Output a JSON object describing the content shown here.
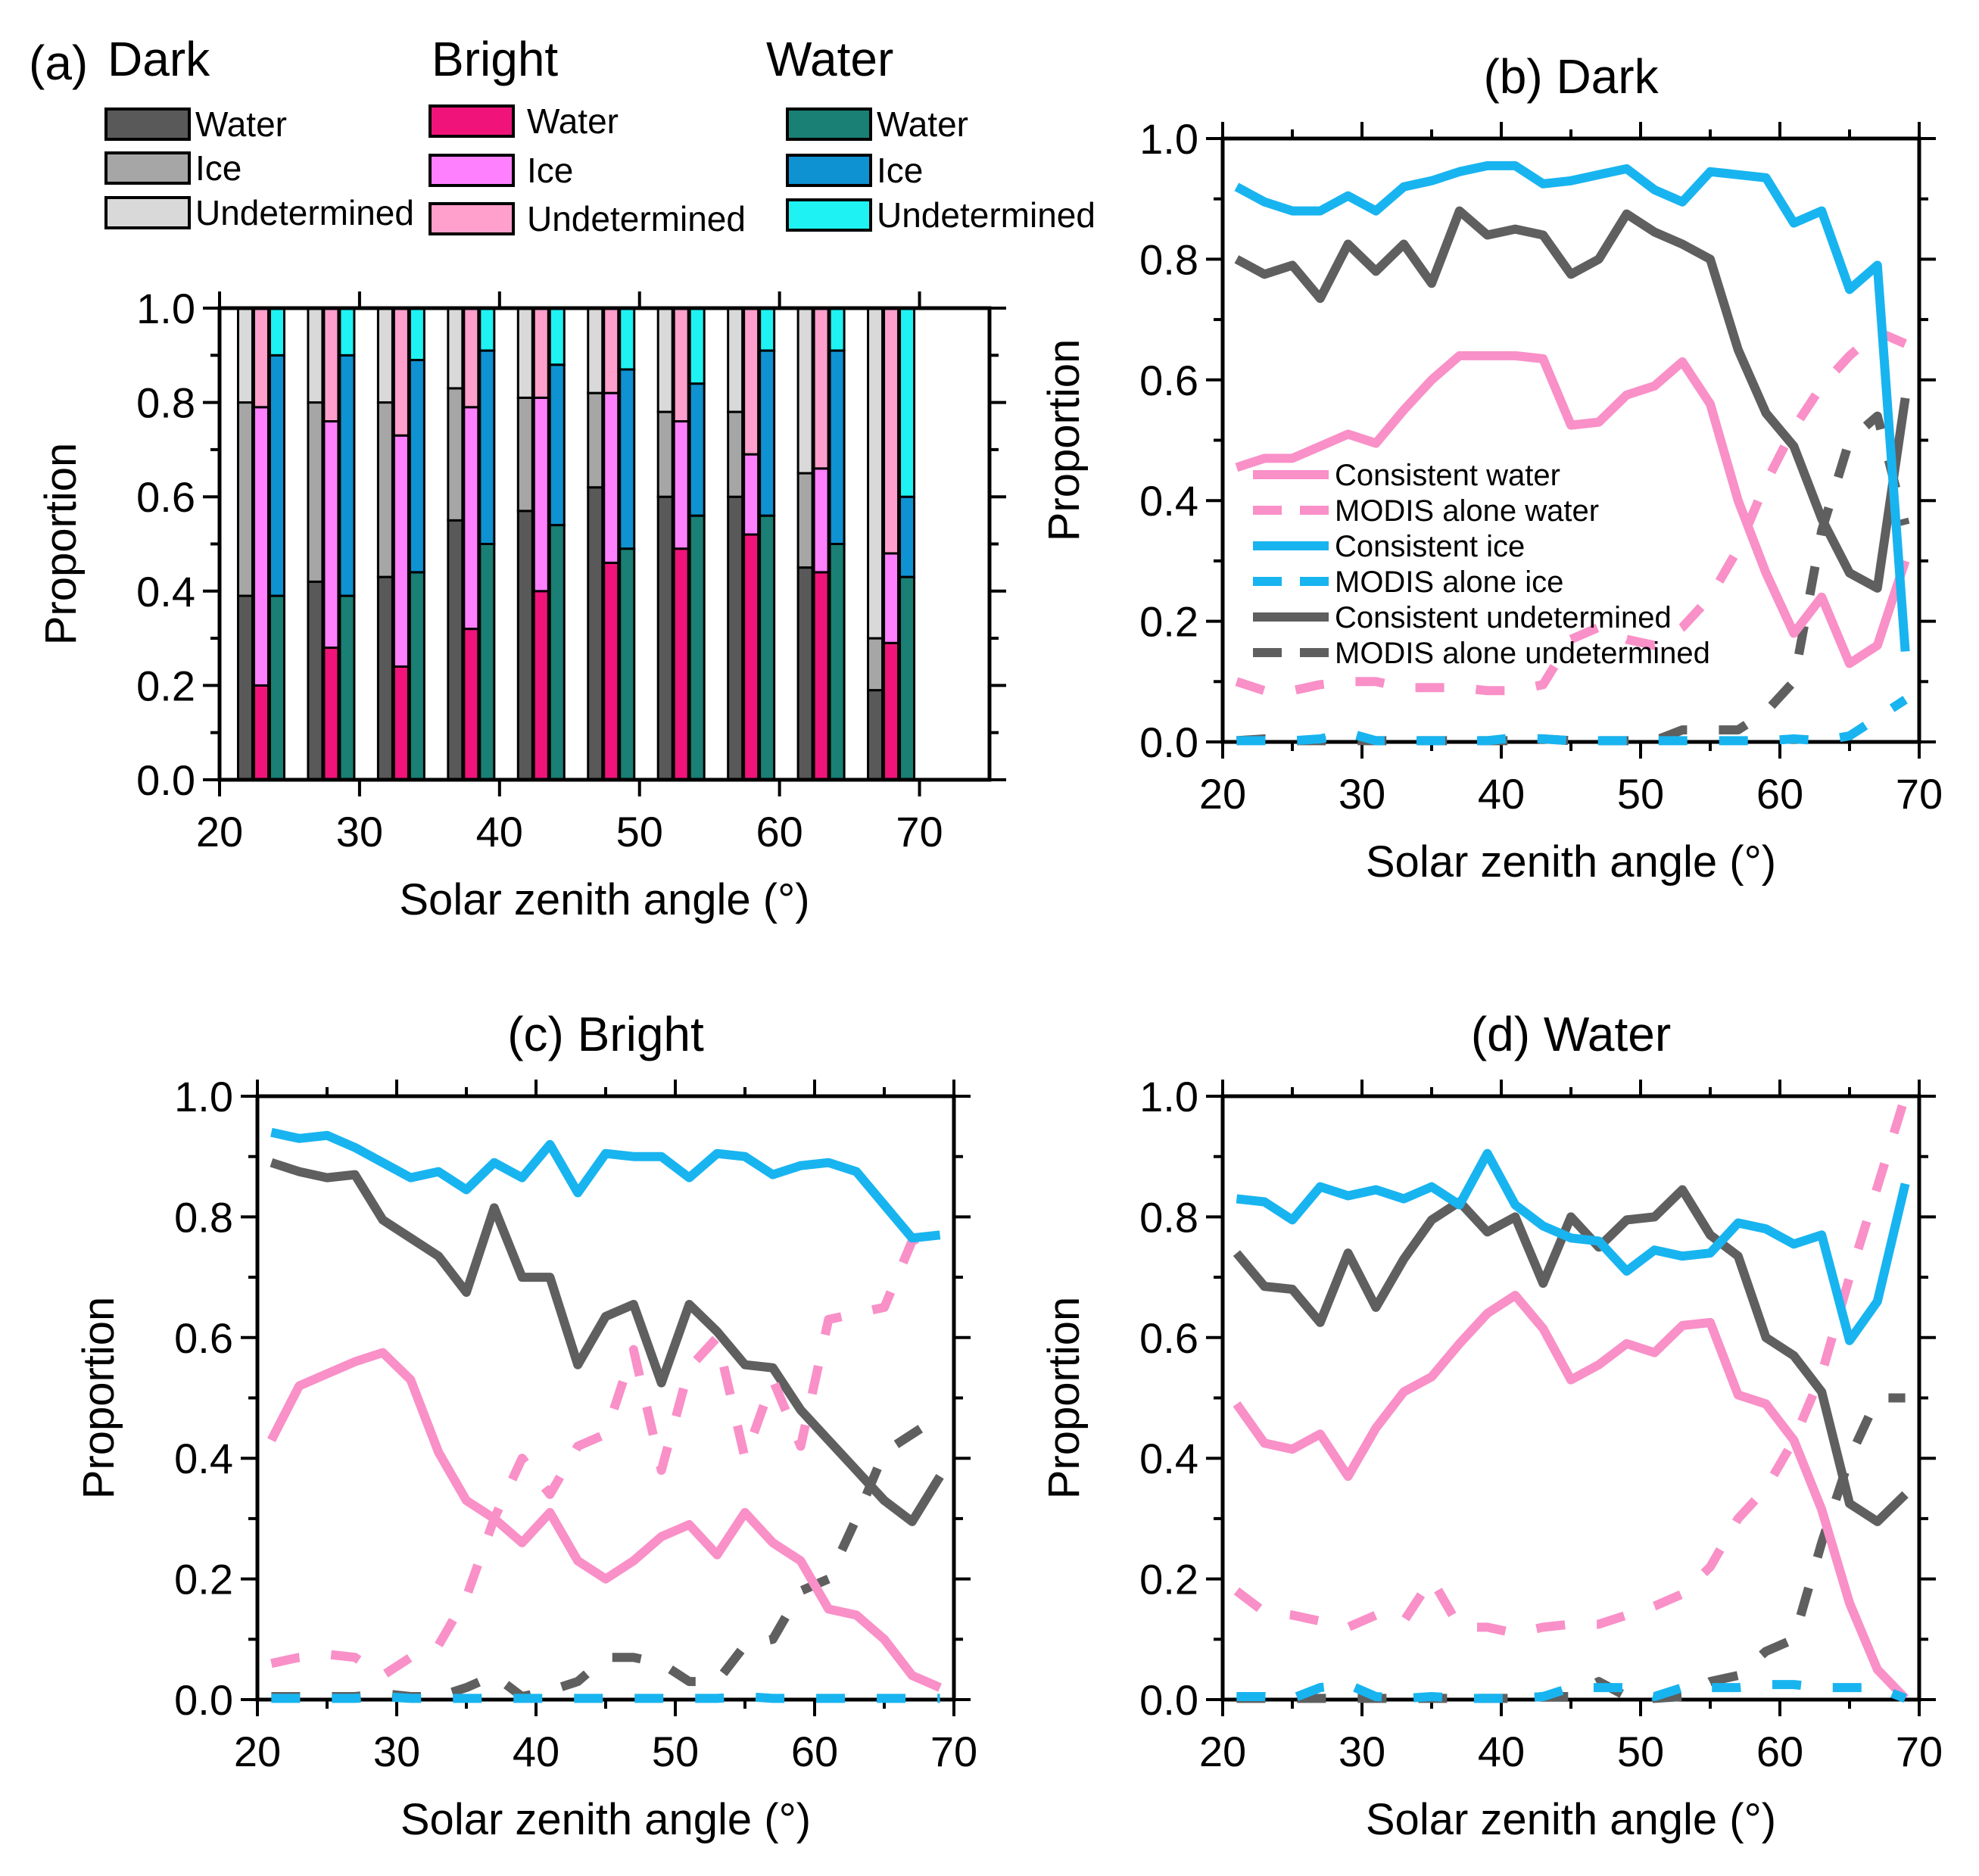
{
  "chart_data": [
    {
      "id": "a",
      "type": "bar",
      "panel_label": "(a)",
      "xlabel": "Solar zenith angle (°)",
      "ylabel": "Proportion",
      "xlim": [
        20,
        75
      ],
      "ylim": [
        0,
        1
      ],
      "xticks": [
        "20",
        "30",
        "40",
        "50",
        "60",
        "70"
      ],
      "yticks": [
        "0.0",
        "0.2",
        "0.4",
        "0.6",
        "0.8",
        "1.0"
      ],
      "x": [
        23,
        28,
        33,
        38,
        43,
        48,
        53,
        58,
        63,
        68
      ],
      "legend_groups": [
        {
          "name": "Dark",
          "entries": [
            "Water",
            "Ice",
            "Undetermined"
          ],
          "colors": [
            "#595959",
            "#a6a6a6",
            "#d9d9d9"
          ]
        },
        {
          "name": "Bright",
          "entries": [
            "Water",
            "Ice",
            "Undetermined"
          ],
          "colors": [
            "#f0147a",
            "#ff80ff",
            "#ff9fcc"
          ]
        },
        {
          "name": "Water",
          "entries": [
            "Water",
            "Ice",
            "Undetermined"
          ],
          "colors": [
            "#1a7f74",
            "#0e92d2",
            "#1ff2f2"
          ]
        }
      ],
      "stacks": [
        {
          "group": "Dark",
          "water": [
            0.39,
            0.42,
            0.43,
            0.55,
            0.57,
            0.62,
            0.6,
            0.6,
            0.45,
            0.19
          ],
          "ice": [
            0.41,
            0.38,
            0.37,
            0.28,
            0.24,
            0.2,
            0.18,
            0.18,
            0.2,
            0.11
          ]
        },
        {
          "group": "Bright",
          "water": [
            0.2,
            0.28,
            0.24,
            0.32,
            0.4,
            0.46,
            0.49,
            0.52,
            0.44,
            0.29
          ],
          "ice": [
            0.59,
            0.48,
            0.49,
            0.47,
            0.41,
            0.36,
            0.27,
            0.17,
            0.22,
            0.19
          ]
        },
        {
          "group": "Water",
          "water": [
            0.39,
            0.39,
            0.44,
            0.5,
            0.54,
            0.49,
            0.56,
            0.56,
            0.5,
            0.43
          ],
          "ice": [
            0.51,
            0.51,
            0.45,
            0.41,
            0.34,
            0.38,
            0.28,
            0.35,
            0.41,
            0.17
          ]
        }
      ]
    },
    {
      "id": "b",
      "type": "line",
      "title": "(b) Dark",
      "xlabel": "Solar zenith angle (°)",
      "ylabel": "Proportion",
      "xlim": [
        20,
        70
      ],
      "ylim": [
        0,
        1
      ],
      "xticks": [
        "20",
        "30",
        "40",
        "50",
        "60",
        "70"
      ],
      "yticks": [
        "0.0",
        "0.2",
        "0.4",
        "0.6",
        "0.8",
        "1.0"
      ],
      "legend": [
        "Consistent water",
        "MODIS alone water",
        "Consistent ice",
        "MODIS alone ice",
        "Consistent undetermined",
        "MODIS alone undetermined"
      ],
      "x": [
        21,
        23,
        25,
        27,
        29,
        31,
        33,
        35,
        37,
        39,
        41,
        43,
        45,
        47,
        49,
        51,
        53,
        55,
        57,
        59,
        61,
        63,
        65,
        67,
        69
      ],
      "series": [
        {
          "name": "Consistent water",
          "color": "#f990c8",
          "dashed": false,
          "values": [
            0.455,
            0.47,
            0.47,
            0.49,
            0.51,
            0.495,
            0.55,
            0.6,
            0.64,
            0.64,
            0.64,
            0.635,
            0.525,
            0.53,
            0.575,
            0.59,
            0.63,
            0.56,
            0.4,
            0.28,
            0.18,
            0.24,
            0.13,
            0.16,
            0.3
          ]
        },
        {
          "name": "MODIS alone water",
          "color": "#f990c8",
          "dashed": true,
          "values": [
            0.1,
            0.085,
            0.085,
            0.095,
            0.1,
            0.1,
            0.09,
            0.09,
            0.09,
            0.085,
            0.085,
            0.095,
            0.17,
            0.19,
            0.17,
            0.16,
            0.19,
            0.24,
            0.32,
            0.43,
            0.52,
            0.59,
            0.64,
            0.68,
            0.66
          ]
        },
        {
          "name": "Consistent ice",
          "color": "#18b4f0",
          "dashed": false,
          "values": [
            0.92,
            0.895,
            0.88,
            0.88,
            0.905,
            0.88,
            0.92,
            0.93,
            0.945,
            0.955,
            0.955,
            0.925,
            0.93,
            0.94,
            0.95,
            0.915,
            0.895,
            0.945,
            0.94,
            0.935,
            0.86,
            0.88,
            0.75,
            0.79,
            0.15
          ]
        },
        {
          "name": "MODIS alone ice",
          "color": "#18b4f0",
          "dashed": true,
          "values": [
            0.002,
            0.002,
            0.002,
            0.005,
            0.015,
            0.002,
            0.002,
            0.002,
            0.002,
            0.002,
            0.007,
            0.005,
            0.002,
            0.002,
            0.002,
            0.002,
            0.002,
            0.002,
            0.002,
            0.002,
            0.005,
            0.002,
            0.01,
            0.04,
            0.07
          ]
        },
        {
          "name": "Consistent undetermined",
          "color": "#5f5f5f",
          "dashed": false,
          "values": [
            0.8,
            0.775,
            0.79,
            0.735,
            0.825,
            0.78,
            0.825,
            0.76,
            0.88,
            0.84,
            0.85,
            0.84,
            0.775,
            0.8,
            0.875,
            0.845,
            0.825,
            0.8,
            0.65,
            0.545,
            0.49,
            0.37,
            0.28,
            0.255,
            0.57
          ]
        },
        {
          "name": "MODIS alone undetermined",
          "color": "#5f5f5f",
          "dashed": true,
          "values": [
            0.002,
            0.005,
            0.002,
            0.002,
            0.002,
            0.002,
            0.002,
            0.002,
            0.002,
            0.002,
            0.002,
            0.005,
            0.002,
            0.002,
            0.002,
            0.002,
            0.02,
            0.02,
            0.02,
            0.05,
            0.1,
            0.35,
            0.5,
            0.54,
            0.36
          ]
        }
      ]
    },
    {
      "id": "c",
      "type": "line",
      "title": "(c) Bright",
      "xlabel": "Solar zenith angle (°)",
      "ylabel": "Proportion",
      "xlim": [
        20,
        70
      ],
      "ylim": [
        0,
        1
      ],
      "xticks": [
        "20",
        "30",
        "40",
        "50",
        "60",
        "70"
      ],
      "yticks": [
        "0.0",
        "0.2",
        "0.4",
        "0.6",
        "0.8",
        "1.0"
      ],
      "x": [
        21,
        23,
        25,
        27,
        29,
        31,
        33,
        35,
        37,
        39,
        41,
        43,
        45,
        47,
        49,
        51,
        53,
        55,
        57,
        59,
        61,
        63,
        65,
        67,
        69
      ],
      "series": [
        {
          "name": "Consistent water",
          "color": "#f990c8",
          "dashed": false,
          "values": [
            0.43,
            0.52,
            0.54,
            0.56,
            0.575,
            0.53,
            0.41,
            0.33,
            0.3,
            0.26,
            0.31,
            0.23,
            0.2,
            0.23,
            0.27,
            0.29,
            0.24,
            0.31,
            0.26,
            0.23,
            0.15,
            0.14,
            0.1,
            0.04,
            0.02
          ]
        },
        {
          "name": "MODIS alone water",
          "color": "#f990c8",
          "dashed": true,
          "values": [
            0.06,
            0.07,
            0.075,
            0.07,
            0.04,
            0.07,
            0.09,
            0.17,
            0.3,
            0.4,
            0.34,
            0.42,
            0.44,
            0.58,
            0.38,
            0.55,
            0.6,
            0.4,
            0.53,
            0.42,
            0.63,
            0.64,
            0.65,
            0.76,
            0.78
          ]
        },
        {
          "name": "Consistent ice",
          "color": "#18b4f0",
          "dashed": false,
          "values": [
            0.94,
            0.93,
            0.935,
            0.915,
            0.89,
            0.865,
            0.875,
            0.845,
            0.89,
            0.865,
            0.92,
            0.84,
            0.905,
            0.9,
            0.9,
            0.865,
            0.905,
            0.9,
            0.87,
            0.885,
            0.89,
            0.875,
            0.82,
            0.765,
            0.77
          ]
        },
        {
          "name": "MODIS alone ice",
          "color": "#18b4f0",
          "dashed": true,
          "values": [
            0.002,
            0.002,
            0.002,
            0.002,
            0.005,
            0.002,
            0.002,
            0.002,
            0.002,
            0.002,
            0.002,
            0.002,
            0.002,
            0.002,
            0.002,
            0.002,
            0.002,
            0.005,
            0.002,
            0.002,
            0.002,
            0.002,
            0.002,
            0.002,
            0.002
          ]
        },
        {
          "name": "Consistent undetermined",
          "color": "#5f5f5f",
          "dashed": false,
          "values": [
            0.89,
            0.875,
            0.865,
            0.87,
            0.795,
            0.765,
            0.735,
            0.675,
            0.815,
            0.7,
            0.7,
            0.555,
            0.635,
            0.655,
            0.525,
            0.655,
            0.61,
            0.555,
            0.55,
            0.48,
            0.43,
            0.38,
            0.33,
            0.295,
            0.37
          ]
        },
        {
          "name": "MODIS alone undetermined",
          "color": "#5f5f5f",
          "dashed": true,
          "values": [
            0.005,
            0.005,
            0.005,
            0.005,
            0.01,
            0.005,
            0.005,
            0.02,
            0.04,
            0.005,
            0.015,
            0.03,
            0.07,
            0.07,
            0.06,
            0.03,
            0.03,
            0.09,
            0.1,
            0.18,
            0.2,
            0.3,
            0.41,
            0.44,
            0.47
          ]
        }
      ]
    },
    {
      "id": "d",
      "type": "line",
      "title": "(d) Water",
      "xlabel": "Solar zenith angle (°)",
      "ylabel": "Proportion",
      "xlim": [
        20,
        70
      ],
      "ylim": [
        0,
        1
      ],
      "xticks": [
        "20",
        "30",
        "40",
        "50",
        "60",
        "70"
      ],
      "yticks": [
        "0.0",
        "0.2",
        "0.4",
        "0.6",
        "0.8",
        "1.0"
      ],
      "x": [
        21,
        23,
        25,
        27,
        29,
        31,
        33,
        35,
        37,
        39,
        41,
        43,
        45,
        47,
        49,
        51,
        53,
        55,
        57,
        59,
        61,
        63,
        65,
        67,
        69
      ],
      "series": [
        {
          "name": "Consistent water",
          "color": "#f990c8",
          "dashed": false,
          "values": [
            0.49,
            0.425,
            0.415,
            0.44,
            0.37,
            0.45,
            0.51,
            0.535,
            0.59,
            0.64,
            0.67,
            0.615,
            0.53,
            0.555,
            0.59,
            0.575,
            0.62,
            0.625,
            0.505,
            0.49,
            0.43,
            0.315,
            0.16,
            0.05,
            0.002
          ]
        },
        {
          "name": "MODIS alone water",
          "color": "#f990c8",
          "dashed": true,
          "values": [
            0.18,
            0.145,
            0.14,
            0.13,
            0.12,
            0.14,
            0.13,
            0.2,
            0.12,
            0.12,
            0.11,
            0.12,
            0.125,
            0.125,
            0.14,
            0.155,
            0.175,
            0.22,
            0.3,
            0.35,
            0.43,
            0.54,
            0.7,
            0.85,
            1.0
          ]
        },
        {
          "name": "Consistent ice",
          "color": "#18b4f0",
          "dashed": false,
          "values": [
            0.83,
            0.825,
            0.795,
            0.85,
            0.835,
            0.845,
            0.83,
            0.85,
            0.82,
            0.905,
            0.82,
            0.785,
            0.765,
            0.76,
            0.71,
            0.745,
            0.735,
            0.74,
            0.79,
            0.78,
            0.755,
            0.77,
            0.595,
            0.66,
            0.855
          ]
        },
        {
          "name": "MODIS alone ice",
          "color": "#18b4f0",
          "dashed": true,
          "values": [
            0.005,
            0.005,
            0.002,
            0.02,
            0.025,
            0.005,
            0.002,
            0.005,
            0.002,
            0.002,
            0.002,
            0.005,
            0.02,
            0.02,
            0.02,
            0.005,
            0.02,
            0.02,
            0.02,
            0.025,
            0.025,
            0.02,
            0.02,
            0.02,
            0.002
          ]
        },
        {
          "name": "Consistent undetermined",
          "color": "#5f5f5f",
          "dashed": false,
          "values": [
            0.74,
            0.685,
            0.68,
            0.625,
            0.74,
            0.65,
            0.73,
            0.795,
            0.825,
            0.775,
            0.8,
            0.69,
            0.8,
            0.75,
            0.795,
            0.8,
            0.845,
            0.77,
            0.735,
            0.6,
            0.57,
            0.51,
            0.325,
            0.295,
            0.34
          ]
        },
        {
          "name": "MODIS alone undetermined",
          "color": "#5f5f5f",
          "dashed": true,
          "values": [
            0.002,
            0.002,
            0.002,
            0.002,
            0.002,
            0.002,
            0.002,
            0.002,
            0.002,
            0.002,
            0.002,
            0.005,
            0.005,
            0.03,
            0.005,
            0.002,
            0.005,
            0.03,
            0.04,
            0.08,
            0.1,
            0.26,
            0.4,
            0.5,
            0.5
          ]
        }
      ]
    }
  ]
}
